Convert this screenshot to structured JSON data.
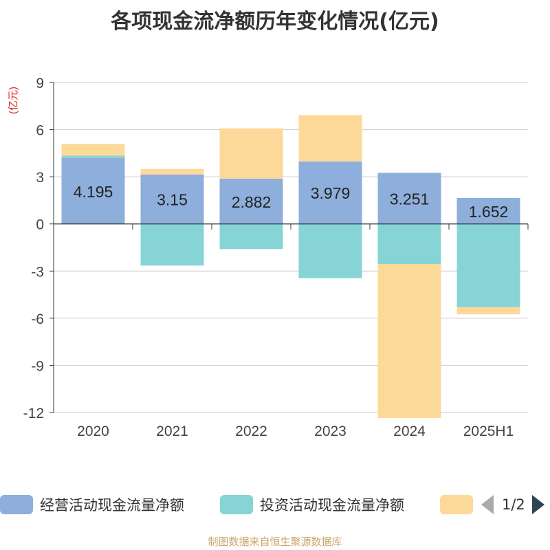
{
  "title": "各项现金流净额历年变化情况(亿元)",
  "footer": "制图数据来自恒生聚源数据库",
  "legend_pager": "1/2",
  "chart_data": {
    "type": "bar",
    "stacked": true,
    "unit_label": "(亿元)",
    "categories": [
      "2020",
      "2021",
      "2022",
      "2023",
      "2024",
      "2025H1"
    ],
    "ylim": [
      -12,
      9
    ],
    "yticks": [
      9,
      6,
      3,
      0,
      -3,
      -6,
      -9,
      -12
    ],
    "grid": true,
    "legend_position": "bottom",
    "series": [
      {
        "name": "经营活动现金流量净额",
        "color": "#8eaedb",
        "values": [
          4.195,
          3.15,
          2.882,
          3.979,
          3.251,
          1.652
        ],
        "labels": [
          "4.195",
          "3.15",
          "2.882",
          "3.979",
          "3.251",
          "1.652"
        ]
      },
      {
        "name": "投资活动现金流量净额",
        "color": "#86d4d6",
        "values": [
          0.15,
          -2.65,
          -1.6,
          -3.45,
          -2.55,
          -5.3
        ]
      },
      {
        "name": "",
        "color": "#fdd999",
        "values": [
          0.75,
          0.35,
          3.2,
          2.95,
          -9.8,
          -0.45
        ]
      }
    ]
  }
}
